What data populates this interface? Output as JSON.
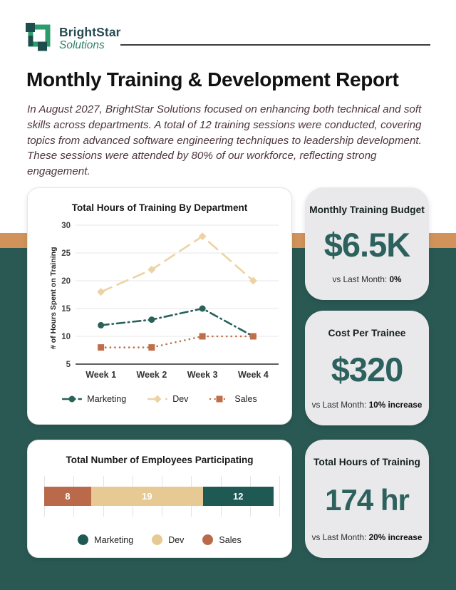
{
  "brand": {
    "name": "BrightStar",
    "subname": "Solutions"
  },
  "title": "Monthly Training & Development Report",
  "intro_lines": [
    "In August 2027, BrightStar Solutions focused on enhancing both technical and soft",
    "skills across departments. A total of 12 training sessions were conducted, covering",
    "topics from advanced software engineering techniques to leadership development.",
    "These sessions were attended by 80% of our workforce, reflecting strong engagement."
  ],
  "colors": {
    "accent_orange": "#D2935B",
    "background_teal": "#2A5954",
    "kpi_card_bg": "#E9E9EB",
    "kpi_value_teal": "#2C615D",
    "intro_text": "#4C353C",
    "title_text": "#111111",
    "brand_dark": "#2A4B52",
    "brand_green": "#2F8169",
    "logo_green": "#2E9B6C",
    "logo_dark": "#1C4F4B"
  },
  "chart_data": [
    {
      "type": "line",
      "title": "Total Hours of Training By Department",
      "ylabel": "# of Hours Spent on Training",
      "categories": [
        "Week 1",
        "Week 2",
        "Week 3",
        "Week 4"
      ],
      "series": [
        {
          "name": "Dev",
          "values": [
            18,
            22,
            28,
            20
          ],
          "color": "#ECD3A4",
          "dash": "dashed",
          "marker": "diamond"
        },
        {
          "name": "Marketing",
          "values": [
            12,
            13,
            15,
            10
          ],
          "color": "#2A6159",
          "dash": "dash-dot",
          "marker": "circle"
        },
        {
          "name": "Sales",
          "values": [
            8,
            8,
            10,
            10
          ],
          "color": "#BF6E4A",
          "dash": "dotted",
          "marker": "square"
        }
      ],
      "legend_order": [
        "Marketing",
        "Dev",
        "Sales"
      ],
      "ylim": [
        5,
        30
      ],
      "yticks": [
        5,
        10,
        15,
        20,
        25,
        30
      ],
      "grid": "horizontal",
      "legend_position": "bottom"
    },
    {
      "type": "bar",
      "variant": "horizontal-stacked",
      "title": "Total Number of Employees Participating",
      "segments": [
        {
          "name": "Sales",
          "value": 8,
          "color": "#BA6A4B"
        },
        {
          "name": "Dev",
          "value": 19,
          "color": "#E7CA93"
        },
        {
          "name": "Marketing",
          "value": 12,
          "color": "#1E5954"
        }
      ],
      "legend": [
        {
          "name": "Marketing",
          "color": "#1E5954"
        },
        {
          "name": "Dev",
          "color": "#E7CA93"
        },
        {
          "name": "Sales",
          "color": "#BA6A4B"
        }
      ],
      "xlim": [
        0,
        40
      ],
      "gridline_step": 5,
      "grid": "vertical",
      "legend_position": "bottom"
    }
  ],
  "kpis": [
    {
      "title": "Monthly Training Budget",
      "value": "$6.5K",
      "sub_prefix": "vs Last Month: ",
      "sub_bold": "0%"
    },
    {
      "title": "Cost Per Trainee",
      "value": "$320",
      "sub_prefix": "vs Last Month: ",
      "sub_bold": "10% increase"
    },
    {
      "title": "Total Hours of Training",
      "value": "174 hr",
      "sub_prefix": "vs Last Month: ",
      "sub_bold": "20% increase"
    }
  ]
}
